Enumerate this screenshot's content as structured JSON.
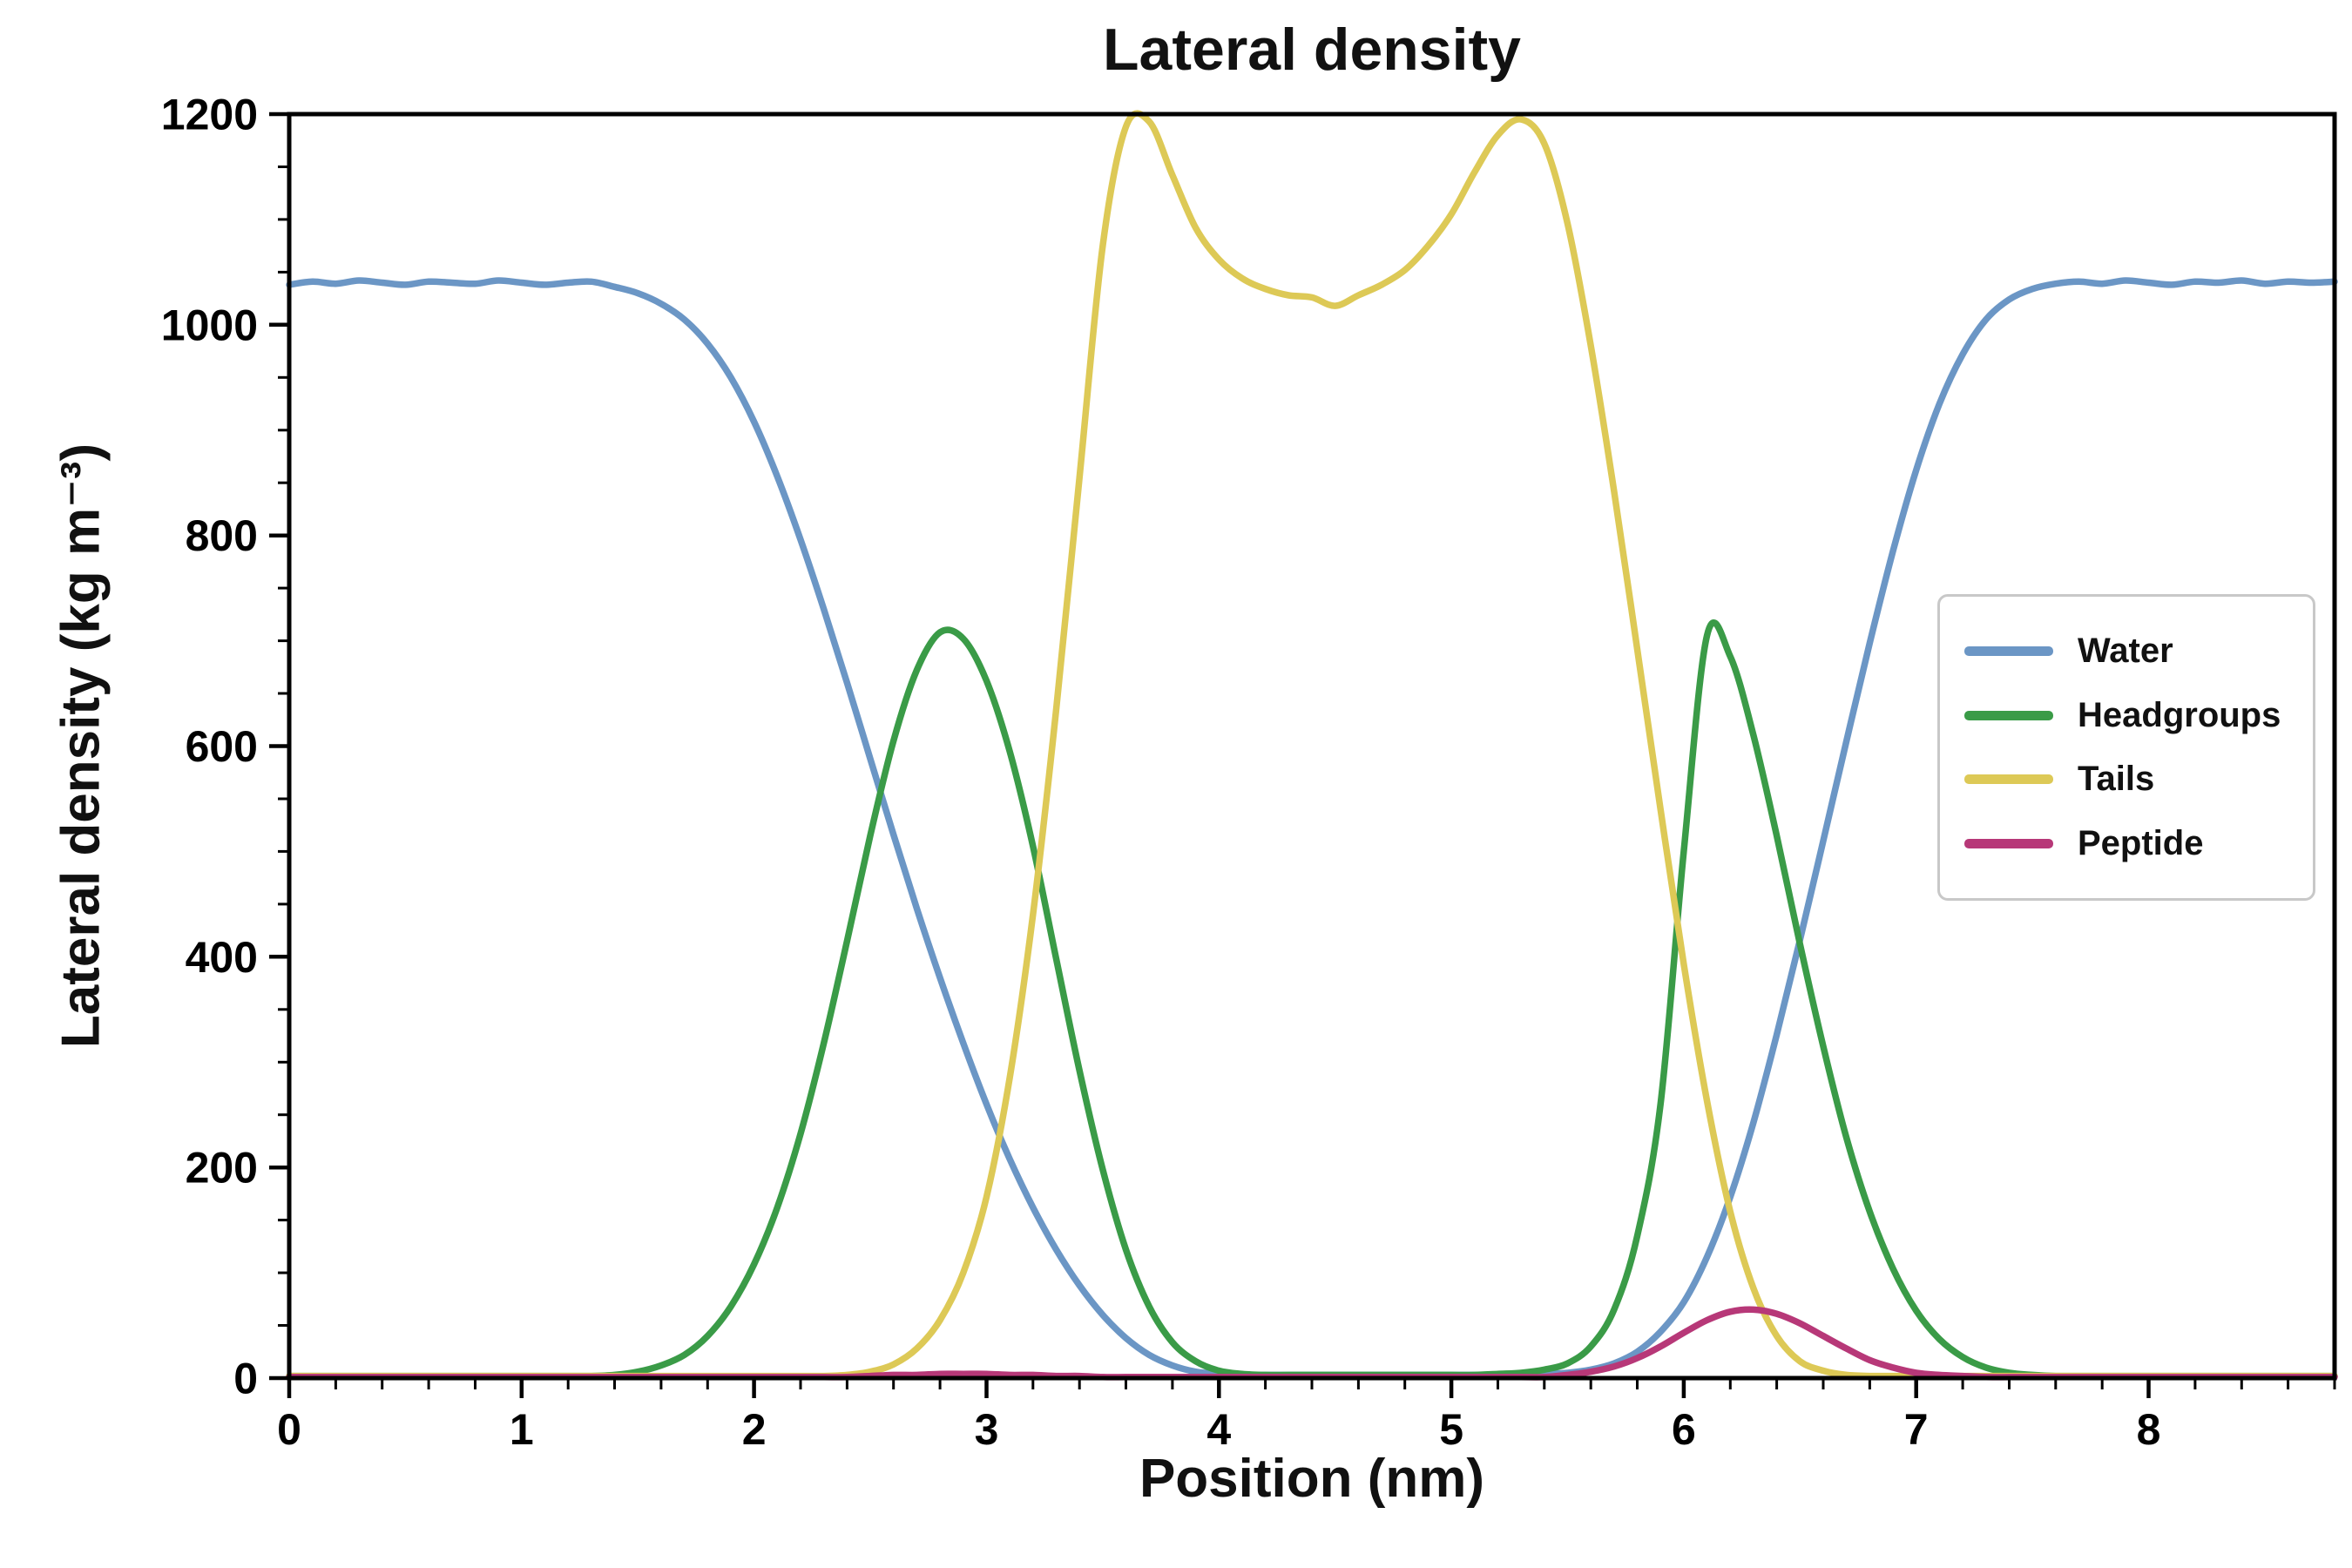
{
  "chart_data": {
    "type": "line",
    "title": "Lateral density",
    "xlabel": "Position (nm)",
    "ylabel": "Lateral density (kg m⁻³)",
    "xlim": [
      0,
      8.8
    ],
    "ylim": [
      0,
      1200
    ],
    "x_major_ticks": [
      0,
      1,
      2,
      3,
      4,
      5,
      6,
      7,
      8
    ],
    "x_minor_step": 0.2,
    "y_major_ticks": [
      0,
      200,
      400,
      600,
      800,
      1000,
      1200
    ],
    "y_minor_step": 50,
    "grid": false,
    "legend_position": "center right",
    "x_start": 0,
    "x_step": 0.1,
    "line_width": 7.5,
    "series": [
      {
        "name": "Water",
        "color": "#6b96c5",
        "values": [
          1038,
          1041,
          1039,
          1042,
          1040,
          1038,
          1041,
          1040,
          1039,
          1042,
          1040,
          1038,
          1040,
          1041,
          1036,
          1030,
          1020,
          1005,
          982,
          950,
          908,
          856,
          796,
          730,
          660,
          588,
          516,
          446,
          380,
          318,
          260,
          208,
          162,
          122,
          88,
          60,
          38,
          22,
          12,
          6,
          4,
          3,
          3,
          3,
          3,
          3,
          3,
          3,
          3,
          3,
          3,
          3,
          3,
          3,
          4,
          5,
          8,
          14,
          25,
          44,
          72,
          115,
          172,
          243,
          326,
          416,
          510,
          605,
          698,
          785,
          862,
          925,
          972,
          1005,
          1024,
          1034,
          1039,
          1041,
          1039,
          1042,
          1040,
          1038,
          1041,
          1040,
          1042,
          1039,
          1041,
          1040,
          1041
        ]
      },
      {
        "name": "Headgroups",
        "color": "#3a9b47",
        "values": [
          2,
          2,
          2,
          2,
          2,
          2,
          2,
          2,
          2,
          2,
          2,
          2,
          2,
          2,
          3,
          6,
          12,
          22,
          40,
          68,
          108,
          162,
          232,
          318,
          415,
          515,
          605,
          672,
          708,
          702,
          662,
          595,
          505,
          398,
          292,
          198,
          122,
          68,
          34,
          16,
          7,
          4,
          3,
          3,
          3,
          3,
          3,
          3,
          3,
          3,
          3,
          3,
          4,
          5,
          8,
          14,
          30,
          65,
          135,
          260,
          500,
          705,
          685,
          610,
          515,
          412,
          315,
          228,
          158,
          104,
          64,
          37,
          20,
          10,
          5,
          3,
          2,
          2,
          2,
          2,
          2,
          2,
          2,
          2,
          2,
          2,
          2,
          2,
          2
        ]
      },
      {
        "name": "Tails",
        "color": "#ddc956",
        "values": [
          2,
          2,
          2,
          2,
          2,
          2,
          2,
          2,
          2,
          2,
          2,
          2,
          2,
          2,
          2,
          2,
          2,
          2,
          2,
          2,
          2,
          2,
          2,
          2,
          3,
          6,
          13,
          28,
          55,
          100,
          172,
          285,
          440,
          635,
          855,
          1075,
          1188,
          1193,
          1142,
          1092,
          1062,
          1044,
          1034,
          1028,
          1026,
          1018,
          1028,
          1038,
          1052,
          1075,
          1105,
          1145,
          1180,
          1195,
          1172,
          1096,
          980,
          842,
          692,
          540,
          393,
          263,
          158,
          85,
          40,
          16,
          7,
          3,
          2,
          2,
          2,
          2,
          2,
          2,
          2,
          2,
          2,
          2,
          2,
          2,
          2,
          2,
          2,
          2,
          2,
          2,
          2,
          2,
          2
        ]
      },
      {
        "name": "Peptide",
        "color": "#b73878",
        "values": [
          1,
          1,
          1,
          1,
          1,
          1,
          1,
          1,
          1,
          1,
          1,
          1,
          1,
          1,
          1,
          1,
          1,
          1,
          1,
          1,
          1,
          1,
          1,
          1,
          1,
          2,
          3,
          3,
          4,
          4,
          4,
          3,
          3,
          2,
          2,
          1,
          1,
          1,
          1,
          1,
          1,
          1,
          1,
          1,
          1,
          1,
          1,
          1,
          1,
          1,
          1,
          1,
          1,
          1,
          1,
          3,
          6,
          11,
          19,
          30,
          43,
          55,
          63,
          65,
          61,
          52,
          40,
          28,
          17,
          10,
          5,
          3,
          2,
          1,
          1,
          1,
          1,
          1,
          1,
          1,
          1,
          1,
          1,
          1,
          1,
          1,
          1,
          1,
          1
        ]
      }
    ]
  }
}
